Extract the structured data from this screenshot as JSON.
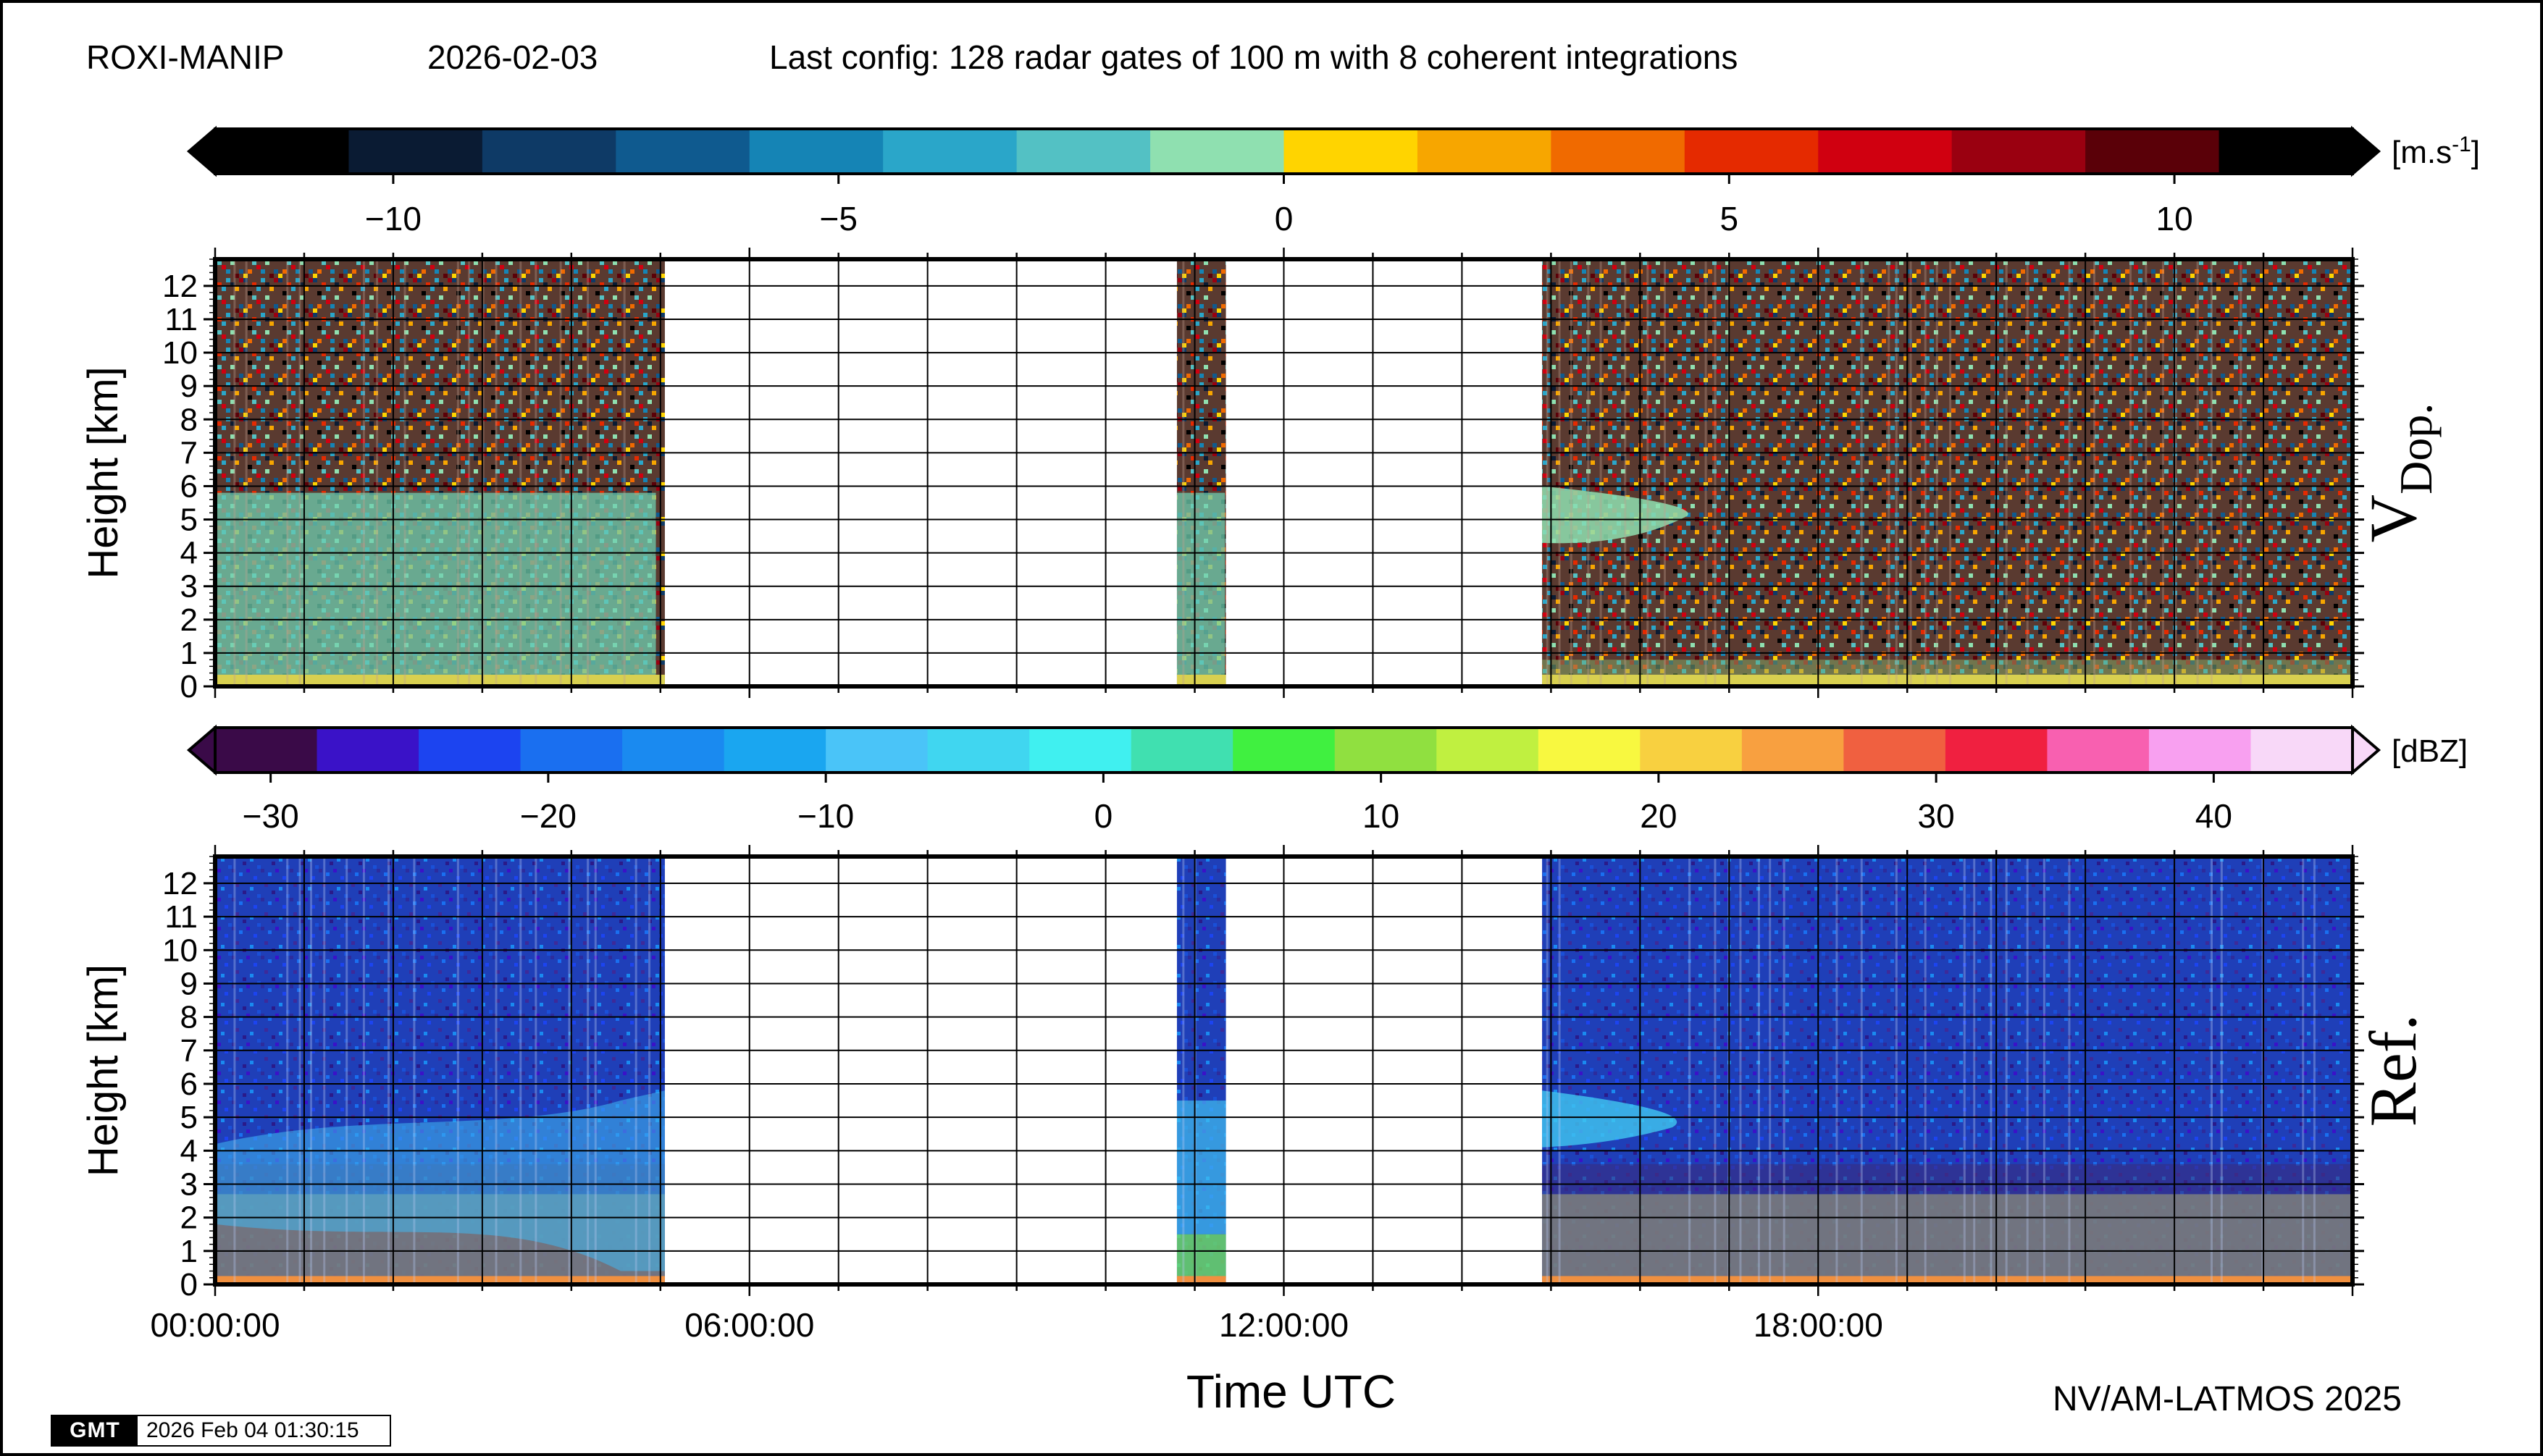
{
  "header": {
    "station": "ROXI-MANIP",
    "date": "2026-02-03",
    "config": "Last config: 128 radar gates of 100 m with 8 coherent integrations"
  },
  "footer": {
    "credit": "NV/AM-LATMOS 2025",
    "gmt_logo": "GMT",
    "timestamp": "2026 Feb 04 01:30:15"
  },
  "chart_data": [
    {
      "type": "heatmap",
      "panel": "V Dop.",
      "label_main": "V",
      "label_sub": "Dop.",
      "ylabel": "Height [km]",
      "ylim": [
        0,
        12.8
      ],
      "yticks": [
        0,
        1,
        2,
        3,
        4,
        5,
        6,
        7,
        8,
        9,
        10,
        11,
        12
      ],
      "xlim_hours": [
        0,
        24
      ],
      "grid": true,
      "colorbar": {
        "unit": "[m.s",
        "unit_sup": "-1",
        "unit_end": "]",
        "range": [
          -12,
          12
        ],
        "ticks": [
          -10,
          -5,
          0,
          5,
          10
        ],
        "tick_labels": [
          "−10",
          "−5",
          "0",
          "5",
          "10"
        ],
        "colors": [
          "#000000",
          "#0a1b33",
          "#0e3a66",
          "#0f5a8f",
          "#1584b5",
          "#2aa6c9",
          "#53c1c4",
          "#8fe0b0",
          "#ffd400",
          "#f7a600",
          "#f06a00",
          "#e52a00",
          "#d00010",
          "#9a0010",
          "#5a0008",
          "#000000"
        ]
      },
      "data_coverage_hours": [
        [
          0,
          5.05
        ],
        [
          10.8,
          11.35
        ],
        [
          14.9,
          24
        ]
      ]
    },
    {
      "type": "heatmap",
      "panel": "Ref.",
      "label_main": "Ref.",
      "ylabel": "Height [km]",
      "ylim": [
        0,
        12.8
      ],
      "yticks": [
        0,
        1,
        2,
        3,
        4,
        5,
        6,
        7,
        8,
        9,
        10,
        11,
        12
      ],
      "xlim_hours": [
        0,
        24
      ],
      "xticks_hours": [
        0,
        6,
        12,
        18
      ],
      "xtick_labels": [
        "00:00:00",
        "06:00:00",
        "12:00:00",
        "18:00:00"
      ],
      "xlabel": "Time UTC",
      "grid": true,
      "colorbar": {
        "unit": "[dBZ]",
        "range": [
          -32,
          45
        ],
        "ticks": [
          -30,
          -20,
          -10,
          0,
          10,
          20,
          30,
          40
        ],
        "tick_labels": [
          "−30",
          "−20",
          "−10",
          "0",
          "10",
          "20",
          "30",
          "40"
        ],
        "colors": [
          "#3a0a48",
          "#3a12c8",
          "#1c44f0",
          "#1a6ff0",
          "#1a8af0",
          "#1aa6f0",
          "#4ac4f8",
          "#40d6f0",
          "#40f0f0",
          "#40e0b0",
          "#40f040",
          "#90e040",
          "#c0f040",
          "#f8f840",
          "#f8d040",
          "#f8a040",
          "#f06040",
          "#f02040",
          "#f860b0",
          "#f8a0f0",
          "#f8d8f8"
        ]
      },
      "data_coverage_hours": [
        [
          0,
          5.05
        ],
        [
          10.8,
          11.35
        ],
        [
          14.9,
          24
        ]
      ]
    }
  ]
}
